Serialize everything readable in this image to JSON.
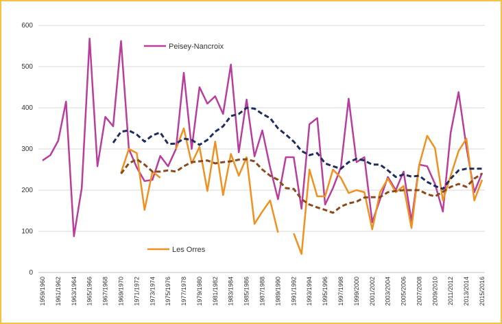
{
  "chart_data": {
    "type": "line",
    "categories": [
      "1959/1960",
      null,
      "1961/1962",
      null,
      "1963/1964",
      null,
      "1965/1966",
      null,
      "1967/1968",
      null,
      "1969/1970",
      null,
      "1971/1972",
      null,
      "1973/1974",
      null,
      "1975/1976",
      null,
      "1977/1978",
      null,
      "1979/1980",
      null,
      "1981/1982",
      null,
      "1983/1984",
      null,
      "1985/1986",
      null,
      "1987/1988",
      null,
      "1989/1990",
      null,
      "1991/1992",
      null,
      "1993/1994",
      null,
      "1995/1996",
      null,
      "1997/1998",
      null,
      "1999/2000",
      null,
      "2001/2002",
      null,
      "2003/2004",
      null,
      "2005/2006",
      null,
      "2007/2008",
      null,
      "2009/2010",
      null,
      "2011/2012",
      null,
      "2013/2014",
      null,
      "2015/2016"
    ],
    "series": [
      {
        "name": "Peisey-Nancroix",
        "color": "#b83d9c",
        "dashed": false,
        "values": [
          272,
          285,
          320,
          415,
          88,
          205,
          568,
          258,
          378,
          355,
          562,
          300,
          255,
          222,
          225,
          283,
          258,
          300,
          485,
          300,
          450,
          410,
          428,
          385,
          505,
          292,
          420,
          282,
          345,
          255,
          178,
          280,
          280,
          155,
          360,
          375,
          165,
          205,
          255,
          422,
          268,
          280,
          122,
          178,
          232,
          200,
          245,
          125,
          262,
          258,
          215,
          148,
          340,
          438,
          305,
          195,
          242
        ]
      },
      {
        "name": "Les Orres",
        "color": "#f0901e",
        "dashed": false,
        "values": [
          null,
          null,
          null,
          null,
          null,
          null,
          null,
          null,
          null,
          null,
          242,
          300,
          290,
          152,
          245,
          230,
          null,
          300,
          350,
          265,
          305,
          198,
          318,
          188,
          288,
          235,
          280,
          118,
          148,
          175,
          97,
          null,
          95,
          45,
          250,
          185,
          185,
          250,
          230,
          193,
          200,
          195,
          105,
          195,
          228,
          195,
          210,
          108,
          262,
          332,
          302,
          175,
          235,
          295,
          325,
          175,
          225
        ]
      },
      {
        "color": "#1f2d5c",
        "dashed": true,
        "values": [
          null,
          null,
          null,
          null,
          null,
          null,
          null,
          null,
          null,
          315,
          342,
          345,
          335,
          318,
          333,
          340,
          312,
          313,
          325,
          322,
          310,
          322,
          342,
          355,
          380,
          385,
          400,
          398,
          385,
          375,
          350,
          335,
          318,
          295,
          285,
          290,
          265,
          258,
          252,
          268,
          276,
          272,
          262,
          262,
          248,
          232,
          238,
          233,
          235,
          220,
          210,
          203,
          228,
          248,
          252,
          252,
          252
        ]
      },
      {
        "color": "#8a4a1c",
        "dashed": true,
        "values": [
          null,
          null,
          null,
          null,
          null,
          null,
          null,
          null,
          null,
          null,
          240,
          265,
          275,
          262,
          245,
          245,
          248,
          245,
          258,
          268,
          270,
          272,
          265,
          268,
          270,
          274,
          275,
          270,
          250,
          235,
          225,
          205,
          203,
          178,
          165,
          158,
          152,
          145,
          160,
          168,
          172,
          182,
          183,
          183,
          195,
          198,
          200,
          200,
          200,
          190,
          185,
          196,
          208,
          215,
          208,
          228,
          240
        ]
      }
    ],
    "ylim": [
      0,
      600
    ],
    "yticks": [
      0,
      100,
      200,
      300,
      400,
      500,
      600
    ],
    "grid": true
  }
}
